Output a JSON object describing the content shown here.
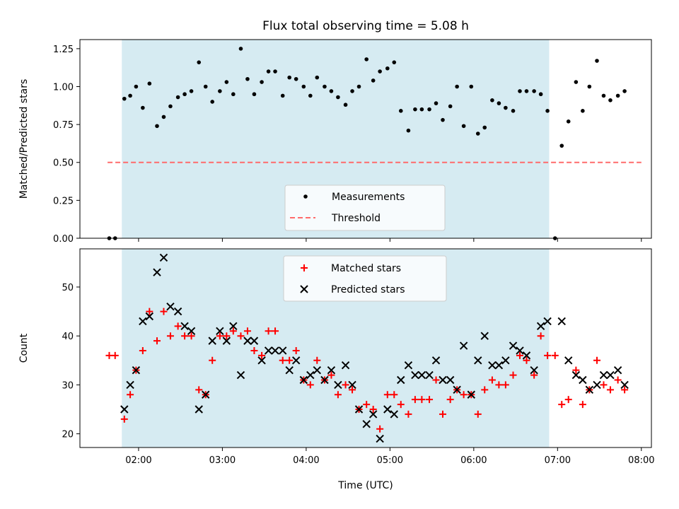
{
  "chart_data": [
    {
      "type": "scatter",
      "title": "Flux total observing time = 5.08 h",
      "xlabel": "",
      "ylabel": "Matched/Predicted stars",
      "xlim": [
        1.3,
        8.12
      ],
      "ylim": [
        0,
        1.31
      ],
      "xticks": [
        2,
        3,
        4,
        5,
        6,
        7,
        8
      ],
      "yticks": [
        0.0,
        0.25,
        0.5,
        0.75,
        1.0,
        1.25
      ],
      "ytick_labels": [
        "0.00",
        "0.25",
        "0.50",
        "0.75",
        "1.00",
        "1.25"
      ],
      "shaded_span": {
        "x_start": 1.8,
        "x_end": 6.9,
        "color": "#add8e6"
      },
      "threshold": {
        "y": 0.5,
        "x_start": 1.63,
        "x_end": 8.0,
        "color": "#ff6b6b"
      },
      "legend": {
        "placement": "lower center",
        "entries": [
          "Measurements",
          "Threshold"
        ]
      },
      "series": [
        {
          "name": "Measurements",
          "marker": "dot",
          "color": "#000000",
          "points": [
            [
              1.65,
              0
            ],
            [
              1.72,
              0
            ],
            [
              1.83,
              0.92
            ],
            [
              1.9,
              0.94
            ],
            [
              1.97,
              1.0
            ],
            [
              2.05,
              0.86
            ],
            [
              2.13,
              1.02
            ],
            [
              2.22,
              0.74
            ],
            [
              2.3,
              0.8
            ],
            [
              2.38,
              0.87
            ],
            [
              2.47,
              0.93
            ],
            [
              2.55,
              0.95
            ],
            [
              2.63,
              0.97
            ],
            [
              2.72,
              1.16
            ],
            [
              2.8,
              1.0
            ],
            [
              2.88,
              0.9
            ],
            [
              2.97,
              0.97
            ],
            [
              3.05,
              1.03
            ],
            [
              3.13,
              0.95
            ],
            [
              3.22,
              1.25
            ],
            [
              3.3,
              1.05
            ],
            [
              3.38,
              0.95
            ],
            [
              3.47,
              1.03
            ],
            [
              3.55,
              1.1
            ],
            [
              3.63,
              1.1
            ],
            [
              3.72,
              0.94
            ],
            [
              3.8,
              1.06
            ],
            [
              3.88,
              1.05
            ],
            [
              3.97,
              1.0
            ],
            [
              4.05,
              0.94
            ],
            [
              4.13,
              1.06
            ],
            [
              4.22,
              1.0
            ],
            [
              4.3,
              0.97
            ],
            [
              4.38,
              0.93
            ],
            [
              4.47,
              0.88
            ],
            [
              4.55,
              0.97
            ],
            [
              4.63,
              1.0
            ],
            [
              4.72,
              1.18
            ],
            [
              4.8,
              1.04
            ],
            [
              4.88,
              1.1
            ],
            [
              4.97,
              1.12
            ],
            [
              5.05,
              1.16
            ],
            [
              5.13,
              0.84
            ],
            [
              5.22,
              0.71
            ],
            [
              5.3,
              0.85
            ],
            [
              5.38,
              0.85
            ],
            [
              5.47,
              0.85
            ],
            [
              5.55,
              0.89
            ],
            [
              5.63,
              0.78
            ],
            [
              5.72,
              0.87
            ],
            [
              5.8,
              1.0
            ],
            [
              5.88,
              0.74
            ],
            [
              5.97,
              1.0
            ],
            [
              6.05,
              0.69
            ],
            [
              6.13,
              0.73
            ],
            [
              6.22,
              0.91
            ],
            [
              6.3,
              0.89
            ],
            [
              6.38,
              0.86
            ],
            [
              6.47,
              0.84
            ],
            [
              6.55,
              0.97
            ],
            [
              6.63,
              0.97
            ],
            [
              6.72,
              0.97
            ],
            [
              6.8,
              0.95
            ],
            [
              6.88,
              0.84
            ],
            [
              6.97,
              0.0
            ],
            [
              7.05,
              0.61
            ],
            [
              7.13,
              0.77
            ],
            [
              7.22,
              1.03
            ],
            [
              7.3,
              0.84
            ],
            [
              7.38,
              1.0
            ],
            [
              7.47,
              1.17
            ],
            [
              7.55,
              0.94
            ],
            [
              7.63,
              0.91
            ],
            [
              7.72,
              0.94
            ],
            [
              7.8,
              0.97
            ]
          ]
        }
      ]
    },
    {
      "type": "scatter",
      "title": "",
      "xlabel": "Time (UTC)",
      "ylabel": "Count",
      "xlim": [
        1.3,
        8.12
      ],
      "ylim": [
        17.2,
        57.8
      ],
      "xticks": [
        2,
        3,
        4,
        5,
        6,
        7,
        8
      ],
      "xtick_labels": [
        "02:00",
        "03:00",
        "04:00",
        "05:00",
        "06:00",
        "07:00",
        "08:00"
      ],
      "yticks": [
        20,
        30,
        40,
        50
      ],
      "ytick_labels": [
        "20",
        "30",
        "40",
        "50"
      ],
      "shaded_span": {
        "x_start": 1.8,
        "x_end": 6.9,
        "color": "#add8e6"
      },
      "legend": {
        "placement": "upper center",
        "entries": [
          "Matched stars",
          "Predicted stars"
        ]
      },
      "series": [
        {
          "name": "Matched stars",
          "marker": "plus",
          "color": "#ff0000",
          "points": [
            [
              1.65,
              36
            ],
            [
              1.72,
              36
            ],
            [
              1.83,
              23
            ],
            [
              1.9,
              28
            ],
            [
              1.97,
              33
            ],
            [
              2.05,
              37
            ],
            [
              2.13,
              45
            ],
            [
              2.22,
              39
            ],
            [
              2.3,
              45
            ],
            [
              2.38,
              40
            ],
            [
              2.47,
              42
            ],
            [
              2.55,
              40
            ],
            [
              2.63,
              40
            ],
            [
              2.72,
              29
            ],
            [
              2.8,
              28
            ],
            [
              2.88,
              35
            ],
            [
              2.97,
              40
            ],
            [
              3.05,
              40
            ],
            [
              3.13,
              41
            ],
            [
              3.22,
              40
            ],
            [
              3.3,
              41
            ],
            [
              3.38,
              37
            ],
            [
              3.47,
              36
            ],
            [
              3.55,
              41
            ],
            [
              3.63,
              41
            ],
            [
              3.72,
              35
            ],
            [
              3.8,
              35
            ],
            [
              3.88,
              37
            ],
            [
              3.97,
              31
            ],
            [
              4.05,
              30
            ],
            [
              4.13,
              35
            ],
            [
              4.22,
              31
            ],
            [
              4.3,
              32
            ],
            [
              4.38,
              28
            ],
            [
              4.47,
              30
            ],
            [
              4.55,
              29
            ],
            [
              4.63,
              25
            ],
            [
              4.72,
              26
            ],
            [
              4.8,
              25
            ],
            [
              4.88,
              21
            ],
            [
              4.97,
              28
            ],
            [
              5.05,
              28
            ],
            [
              5.13,
              26
            ],
            [
              5.22,
              24
            ],
            [
              5.3,
              27
            ],
            [
              5.38,
              27
            ],
            [
              5.47,
              27
            ],
            [
              5.55,
              31
            ],
            [
              5.63,
              24
            ],
            [
              5.72,
              27
            ],
            [
              5.8,
              29
            ],
            [
              5.88,
              28
            ],
            [
              5.97,
              28
            ],
            [
              6.05,
              24
            ],
            [
              6.13,
              29
            ],
            [
              6.22,
              31
            ],
            [
              6.3,
              30
            ],
            [
              6.38,
              30
            ],
            [
              6.47,
              32
            ],
            [
              6.55,
              36
            ],
            [
              6.63,
              35
            ],
            [
              6.72,
              32
            ],
            [
              6.8,
              40
            ],
            [
              6.88,
              36
            ],
            [
              6.97,
              36
            ],
            [
              7.05,
              26
            ],
            [
              7.13,
              27
            ],
            [
              7.22,
              33
            ],
            [
              7.3,
              26
            ],
            [
              7.38,
              29
            ],
            [
              7.47,
              35
            ],
            [
              7.55,
              30
            ],
            [
              7.63,
              29
            ],
            [
              7.72,
              31
            ],
            [
              7.8,
              29
            ]
          ]
        },
        {
          "name": "Predicted stars",
          "marker": "x",
          "color": "#000000",
          "points": [
            [
              1.83,
              25
            ],
            [
              1.9,
              30
            ],
            [
              1.97,
              33
            ],
            [
              2.05,
              43
            ],
            [
              2.13,
              44
            ],
            [
              2.22,
              53
            ],
            [
              2.3,
              56
            ],
            [
              2.38,
              46
            ],
            [
              2.47,
              45
            ],
            [
              2.55,
              42
            ],
            [
              2.63,
              41
            ],
            [
              2.72,
              25
            ],
            [
              2.8,
              28
            ],
            [
              2.88,
              39
            ],
            [
              2.97,
              41
            ],
            [
              3.05,
              39
            ],
            [
              3.13,
              42
            ],
            [
              3.22,
              32
            ],
            [
              3.3,
              39
            ],
            [
              3.38,
              39
            ],
            [
              3.47,
              35
            ],
            [
              3.55,
              37
            ],
            [
              3.63,
              37
            ],
            [
              3.72,
              37
            ],
            [
              3.8,
              33
            ],
            [
              3.88,
              35
            ],
            [
              3.97,
              31
            ],
            [
              4.05,
              32
            ],
            [
              4.13,
              33
            ],
            [
              4.22,
              31
            ],
            [
              4.3,
              33
            ],
            [
              4.38,
              30
            ],
            [
              4.47,
              34
            ],
            [
              4.55,
              30
            ],
            [
              4.63,
              25
            ],
            [
              4.72,
              22
            ],
            [
              4.8,
              24
            ],
            [
              4.88,
              19
            ],
            [
              4.97,
              25
            ],
            [
              5.05,
              24
            ],
            [
              5.13,
              31
            ],
            [
              5.22,
              34
            ],
            [
              5.3,
              32
            ],
            [
              5.38,
              32
            ],
            [
              5.47,
              32
            ],
            [
              5.55,
              35
            ],
            [
              5.63,
              31
            ],
            [
              5.72,
              31
            ],
            [
              5.8,
              29
            ],
            [
              5.88,
              38
            ],
            [
              5.97,
              28
            ],
            [
              6.05,
              35
            ],
            [
              6.13,
              40
            ],
            [
              6.22,
              34
            ],
            [
              6.3,
              34
            ],
            [
              6.38,
              35
            ],
            [
              6.47,
              38
            ],
            [
              6.55,
              37
            ],
            [
              6.63,
              36
            ],
            [
              6.72,
              33
            ],
            [
              6.8,
              42
            ],
            [
              6.88,
              43
            ],
            [
              7.05,
              43
            ],
            [
              7.13,
              35
            ],
            [
              7.22,
              32
            ],
            [
              7.3,
              31
            ],
            [
              7.38,
              29
            ],
            [
              7.47,
              30
            ],
            [
              7.55,
              32
            ],
            [
              7.63,
              32
            ],
            [
              7.72,
              33
            ],
            [
              7.8,
              30
            ]
          ]
        }
      ]
    }
  ]
}
